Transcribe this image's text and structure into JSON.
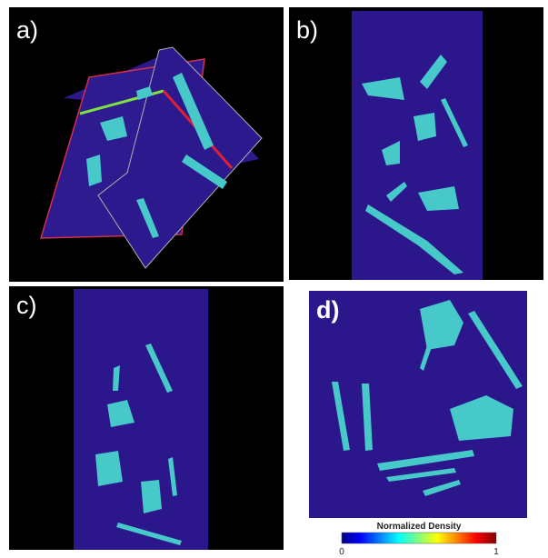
{
  "panels": [
    {
      "label": "a)"
    },
    {
      "label": "b)"
    },
    {
      "label": "c)"
    },
    {
      "label": "d)"
    }
  ],
  "colorbar": {
    "title": "Normalized Density",
    "min_label": "0",
    "max_label": "1"
  }
}
